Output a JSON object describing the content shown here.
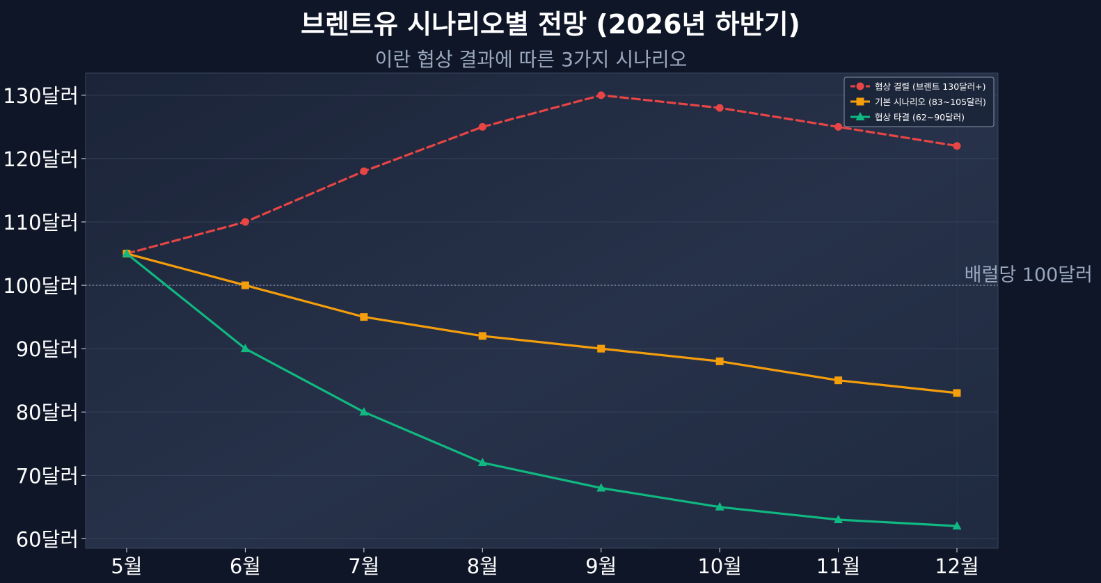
{
  "chart_data": {
    "type": "line",
    "title": "브렌트유 시나리오별 전망 (2026년 하반기)",
    "subtitle": "이란 협상 결과에 따른 3가지 시나리오",
    "categories": [
      "5월",
      "6월",
      "7월",
      "8월",
      "9월",
      "10월",
      "11월",
      "12월"
    ],
    "ylim": [
      58.5,
      133.5
    ],
    "yticks": [
      60,
      70,
      80,
      90,
      100,
      110,
      120,
      130
    ],
    "ytick_labels": [
      "60달러",
      "70달러",
      "80달러",
      "90달러",
      "100달러",
      "110달러",
      "120달러",
      "130달러"
    ],
    "grid": true,
    "legend_position": "top-right",
    "series": [
      {
        "name": "협상 결렬 (브렌트 130달러+)",
        "values": [
          105,
          110,
          118,
          125,
          130,
          128,
          125,
          122
        ],
        "color": "#e84545",
        "marker": "circle",
        "dash": true
      },
      {
        "name": "기본 시나리오 (83~105달러)",
        "values": [
          105,
          100,
          95,
          92,
          90,
          88,
          85,
          83
        ],
        "color": "#f59e0b",
        "marker": "square",
        "dash": false
      },
      {
        "name": "협상 타결 (62~90달러)",
        "values": [
          105,
          90,
          80,
          72,
          68,
          65,
          63,
          62
        ],
        "color": "#10b981",
        "marker": "triangle",
        "dash": false
      }
    ],
    "reference_line": {
      "value": 100,
      "label": "배럴당 100달러"
    }
  }
}
